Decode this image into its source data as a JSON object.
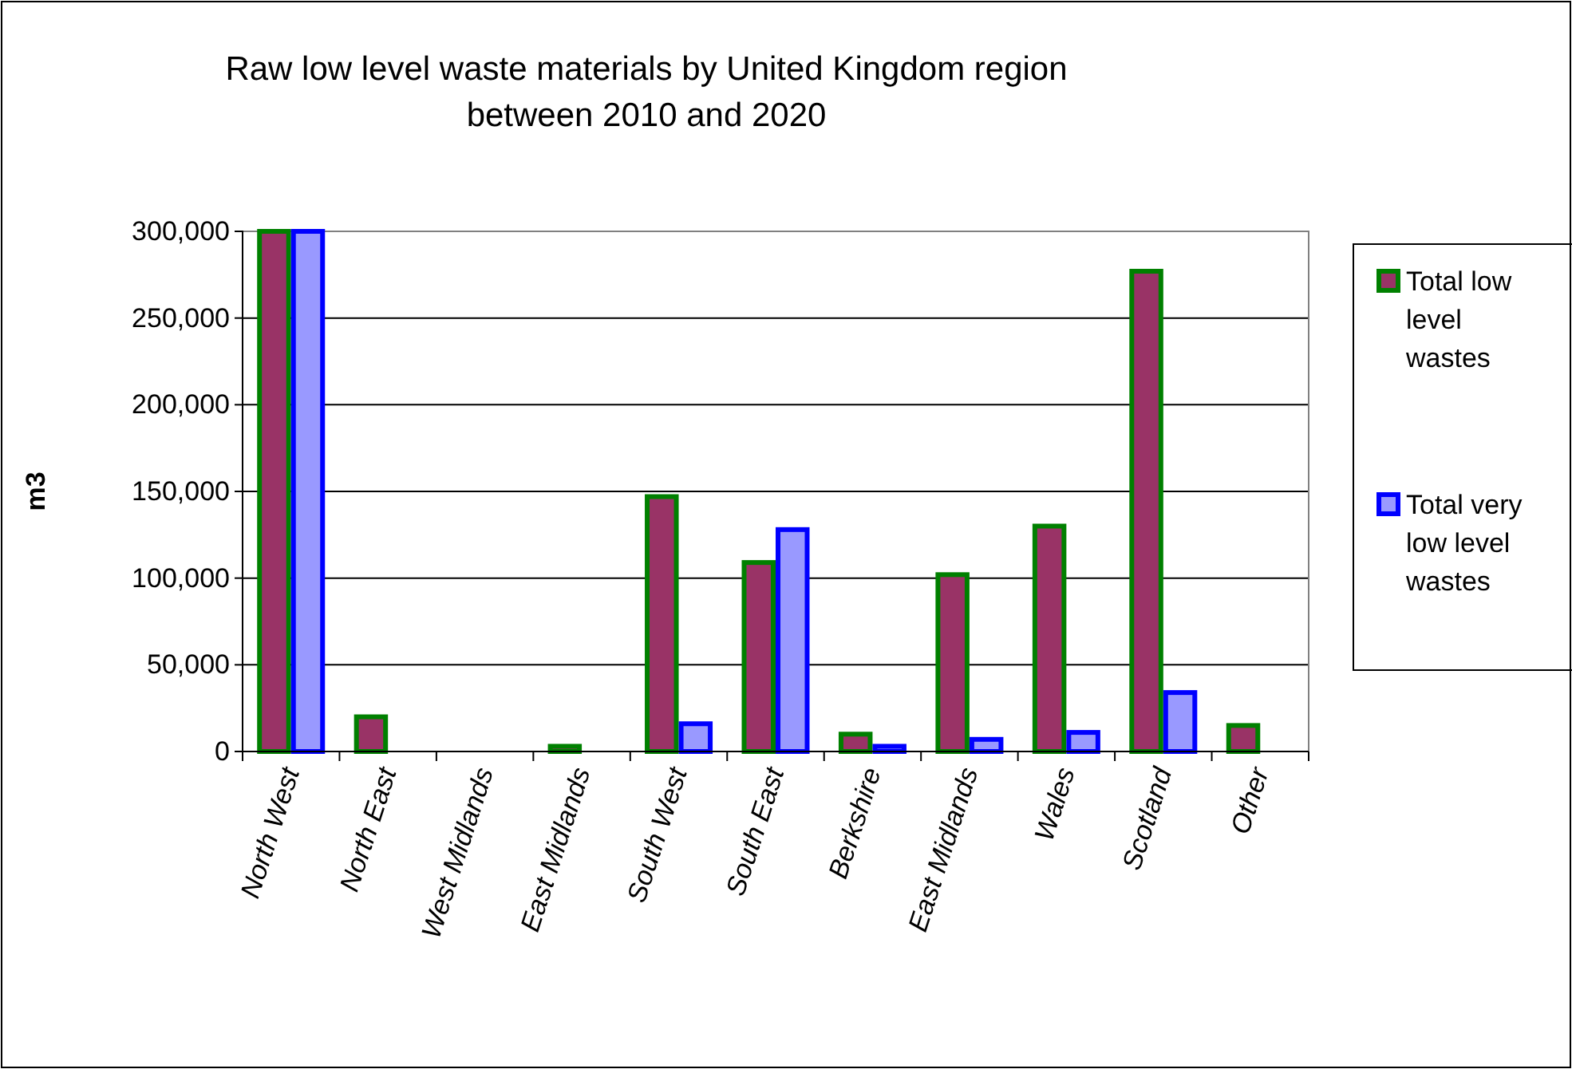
{
  "chart_data": {
    "type": "bar",
    "title": "Raw low level waste materials by United Kingdom region between 2010 and 2020",
    "ylabel": "m3",
    "categories": [
      "North West",
      "North East",
      "West Midlands",
      "East Midlands",
      "South West",
      "South East",
      "Berkshire",
      "East Midlands",
      "Wales",
      "Scotland",
      "Other"
    ],
    "series": [
      {
        "name": "Total low level wastes",
        "color": "#993366",
        "values": [
          300000,
          20000,
          0,
          3000,
          147000,
          109000,
          10000,
          102000,
          130000,
          277000,
          15000
        ]
      },
      {
        "name": "Total very low level wastes",
        "color": "#9999ff",
        "values": [
          300000,
          0,
          0,
          0,
          16000,
          128000,
          3000,
          7000,
          11000,
          34000,
          0
        ]
      }
    ],
    "ylim": [
      0,
      300000
    ],
    "yticks": [
      {
        "value": 0,
        "label": "0"
      },
      {
        "value": 50000,
        "label": "50,000"
      },
      {
        "value": 100000,
        "label": "100,000"
      },
      {
        "value": 150000,
        "label": "150,000"
      },
      {
        "value": 200000,
        "label": "200,000"
      },
      {
        "value": 250000,
        "label": "250,000"
      },
      {
        "value": 300000,
        "label": "300,000"
      }
    ],
    "grid": "y",
    "legend": "right"
  }
}
